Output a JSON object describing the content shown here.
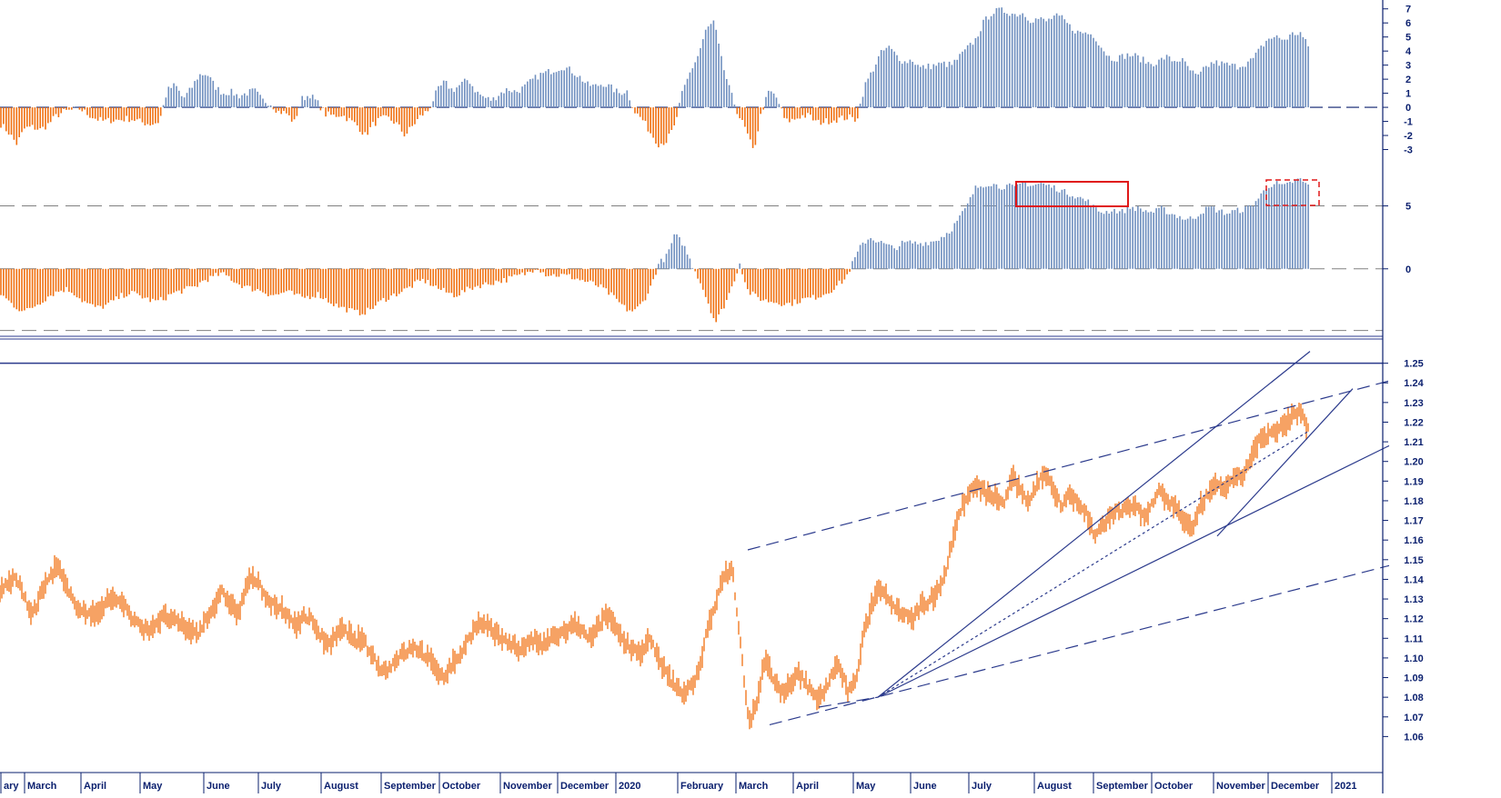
{
  "colors": {
    "up": "#6f8fbf",
    "down": "#f07010",
    "price": "#f07010",
    "axis": "#0a1f6e",
    "trend": "#2b3a8c",
    "highlight": "#e01818",
    "zero": "#808080"
  },
  "axis_labels": {
    "top": [
      "7",
      "6",
      "5",
      "4",
      "3",
      "2",
      "1",
      "0",
      "-1",
      "-2",
      "-3"
    ],
    "mid": [
      "5",
      "0"
    ],
    "price": [
      "1.25",
      "1.24",
      "1.23",
      "1.22",
      "1.21",
      "1.20",
      "1.19",
      "1.18",
      "1.17",
      "1.16",
      "1.15",
      "1.14",
      "1.13",
      "1.12",
      "1.11",
      "1.10",
      "1.09",
      "1.08",
      "1.07",
      "1.06"
    ]
  },
  "months": [
    "ary",
    "March",
    "April",
    "May",
    "June",
    "July",
    "August",
    "September",
    "October",
    "November",
    "December",
    "2020",
    "February",
    "March",
    "April",
    "May",
    "June",
    "July",
    "August",
    "September",
    "October",
    "November",
    "December",
    "2021"
  ],
  "chart_data": [
    {
      "type": "bar",
      "panel": "top-oscillator",
      "ylim": [
        -4,
        7.5
      ],
      "series": [
        {
          "values": [
            -1.2,
            -1.8,
            -2.6,
            -1.5,
            -1.4,
            -1.6,
            -1.2,
            -0.6,
            -0.3,
            -0.2,
            -0.1,
            -0.5,
            -0.8,
            -1.0,
            -0.9,
            -0.9,
            -0.8,
            -0.9,
            -1.1,
            -1.2,
            -1.0,
            1.2,
            1.6,
            0.6,
            1.3,
            2.3,
            2.4,
            1.5,
            1.0,
            1.1,
            0.8,
            1.0,
            1.2,
            0.5,
            0.3,
            -0.3,
            -0.4,
            -1.1,
            0.6,
            0.9,
            0.3,
            -0.5,
            -0.6,
            -0.5,
            -0.9,
            -1.3,
            -2.0,
            -1.2,
            -0.8,
            -0.8,
            -1.2,
            -2.0,
            -1.3,
            -0.6,
            -0.2,
            1.1,
            1.8,
            1.2,
            1.6,
            2.0,
            1.1,
            0.7,
            0.5,
            1.0,
            1.3,
            1.1,
            1.4,
            1.9,
            2.3,
            2.5,
            2.7,
            2.9,
            2.6,
            2.2,
            1.6,
            1.5,
            1.7,
            1.4,
            1.0,
            1.2,
            -0.3,
            -0.9,
            -1.8,
            -2.6,
            -2.4,
            -1.4,
            1.0,
            2.5,
            3.7,
            5.5,
            6.1,
            3.2,
            1.2,
            -0.4,
            -1.6,
            -3.2,
            -0.3,
            1.2,
            0.6,
            -1.0,
            -0.9,
            -0.6,
            -0.6,
            -1.1,
            -1.0,
            -0.9,
            -0.8,
            -0.7,
            -0.9,
            1.5,
            2.6,
            3.8,
            4.3,
            3.7,
            3.2,
            3.4,
            2.8,
            2.9,
            3.0,
            3.1,
            3.0,
            3.6,
            4.2,
            4.8,
            6.0,
            6.7,
            6.9,
            6.8,
            6.6,
            6.7,
            6.2,
            6.3,
            6.1,
            6.5,
            6.3,
            5.7,
            5.3,
            5.3,
            5.1,
            4.2,
            3.5,
            3.5,
            3.7,
            3.7,
            3.4,
            3.1,
            3.2,
            3.6,
            3.3,
            3.4,
            2.7,
            2.1,
            2.8,
            3.2,
            3.1,
            3.0,
            2.9,
            3.1,
            3.4,
            4.2,
            4.9,
            5.0,
            4.8,
            5.2,
            5.3,
            4.3
          ]
        }
      ]
    },
    {
      "type": "bar",
      "panel": "middle-oscillator",
      "ylim": [
        -5,
        8
      ],
      "series": [
        {
          "values": [
            -2.0,
            -2.6,
            -3.1,
            -3.4,
            -3.0,
            -2.6,
            -2.1,
            -1.8,
            -1.6,
            -1.9,
            -2.5,
            -2.9,
            -3.1,
            -2.9,
            -2.5,
            -2.1,
            -1.9,
            -2.1,
            -2.4,
            -2.6,
            -2.4,
            -2.0,
            -1.8,
            -1.6,
            -1.4,
            -0.9,
            -0.7,
            -0.4,
            -0.6,
            -1.1,
            -1.4,
            -1.6,
            -1.7,
            -2.0,
            -2.1,
            -1.8,
            -2.0,
            -2.3,
            -2.2,
            -2.0,
            -2.4,
            -2.8,
            -3.1,
            -3.3,
            -3.5,
            -3.4,
            -3.0,
            -2.5,
            -2.2,
            -1.9,
            -1.6,
            -1.2,
            -0.9,
            -1.2,
            -1.6,
            -1.9,
            -2.1,
            -1.8,
            -1.5,
            -1.3,
            -1.2,
            -1.0,
            -0.9,
            -0.7,
            -0.5,
            -0.3,
            0.2,
            -0.4,
            -0.5,
            -0.5,
            -0.6,
            -0.8,
            -1.0,
            -1.2,
            -1.5,
            -2.0,
            -2.6,
            -3.2,
            -3.4,
            -2.7,
            -1.5,
            0.4,
            1.0,
            2.7,
            2.0,
            0.5,
            -0.8,
            -2.5,
            -4.3,
            -3.0,
            -1.5,
            0.5,
            -1.8,
            -2.2,
            -2.5,
            -2.6,
            -2.7,
            -2.8,
            -2.6,
            -2.4,
            -2.3,
            -2.1,
            -1.8,
            -1.3,
            -0.8,
            0.6,
            1.9,
            2.5,
            2.2,
            1.9,
            1.6,
            2.0,
            2.1,
            2.0,
            2.1,
            2.2,
            2.6,
            3.1,
            4.0,
            5.0,
            6.4,
            6.7,
            6.8,
            6.5,
            6.6,
            6.4,
            6.9,
            6.6,
            6.8,
            6.6,
            6.4,
            6.1,
            5.9,
            5.6,
            5.3,
            4.6,
            4.5,
            4.7,
            4.5,
            4.9,
            4.8,
            4.6,
            4.5,
            4.8,
            4.4,
            4.2,
            3.9,
            4.1,
            4.6,
            4.9,
            4.6,
            4.4,
            4.6,
            4.7,
            5.0,
            5.7,
            6.6,
            6.8,
            6.5,
            6.9,
            7.1,
            6.6
          ]
        }
      ]
    },
    {
      "type": "line",
      "panel": "price",
      "ylim": [
        1.05,
        1.26
      ],
      "series": [
        {
          "values": [
            1.134,
            1.138,
            1.141,
            1.13,
            1.122,
            1.133,
            1.141,
            1.147,
            1.136,
            1.128,
            1.125,
            1.121,
            1.124,
            1.129,
            1.13,
            1.128,
            1.12,
            1.116,
            1.114,
            1.118,
            1.121,
            1.119,
            1.117,
            1.114,
            1.112,
            1.12,
            1.126,
            1.133,
            1.128,
            1.122,
            1.138,
            1.14,
            1.134,
            1.127,
            1.125,
            1.121,
            1.117,
            1.121,
            1.119,
            1.111,
            1.106,
            1.112,
            1.115,
            1.108,
            1.11,
            1.103,
            1.096,
            1.093,
            1.099,
            1.102,
            1.105,
            1.104,
            1.1,
            1.094,
            1.091,
            1.097,
            1.102,
            1.11,
            1.117,
            1.116,
            1.113,
            1.11,
            1.108,
            1.104,
            1.107,
            1.109,
            1.106,
            1.11,
            1.112,
            1.114,
            1.117,
            1.112,
            1.11,
            1.118,
            1.122,
            1.114,
            1.108,
            1.105,
            1.102,
            1.11,
            1.099,
            1.092,
            1.086,
            1.082,
            1.086,
            1.093,
            1.115,
            1.129,
            1.141,
            1.146,
            1.107,
            1.066,
            1.078,
            1.1,
            1.088,
            1.083,
            1.085,
            1.092,
            1.087,
            1.08,
            1.082,
            1.09,
            1.097,
            1.083,
            1.088,
            1.112,
            1.128,
            1.136,
            1.131,
            1.125,
            1.123,
            1.12,
            1.127,
            1.129,
            1.135,
            1.145,
            1.165,
            1.178,
            1.185,
            1.187,
            1.183,
            1.182,
            1.178,
            1.192,
            1.185,
            1.18,
            1.188,
            1.195,
            1.186,
            1.178,
            1.184,
            1.178,
            1.174,
            1.163,
            1.167,
            1.172,
            1.175,
            1.177,
            1.178,
            1.171,
            1.178,
            1.185,
            1.179,
            1.177,
            1.169,
            1.165,
            1.178,
            1.184,
            1.188,
            1.187,
            1.19,
            1.193,
            1.201,
            1.211,
            1.212,
            1.215,
            1.218,
            1.223,
            1.225,
            1.217
          ]
        }
      ]
    }
  ]
}
